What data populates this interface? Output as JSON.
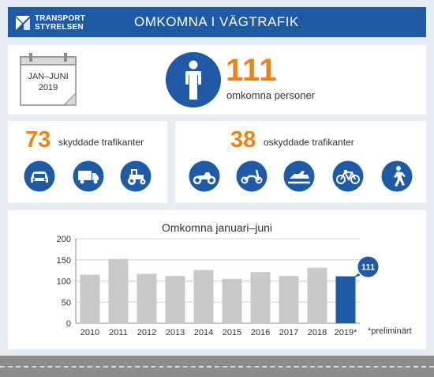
{
  "header": {
    "logo_line1": "TRANSPORT",
    "logo_line2": "STYRELSEN",
    "title": "OMKOMNA I VÄGTRAFIK"
  },
  "summary": {
    "period_line1": "JAN–JUNI",
    "period_line2": "2019",
    "total": "111",
    "total_label": "omkomna personer",
    "person_icon": "person-icon"
  },
  "protected": {
    "count": "73",
    "label": "skyddade trafikanter",
    "icons": [
      "car-icon",
      "truck-icon",
      "tractor-icon"
    ]
  },
  "unprotected": {
    "count": "38",
    "label": "oskyddade trafikanter",
    "icons": [
      "motorcycle-icon",
      "moped-icon",
      "snowmobile-icon",
      "bicycle-icon",
      "pedestrian-icon"
    ]
  },
  "colors": {
    "brand_blue": "#1f5aa6",
    "accent_orange": "#e8841a",
    "bar_gray": "#c9c9c9",
    "highlight_blue": "#1f5aa6",
    "background": "#e6ecf3"
  },
  "chart_data": {
    "type": "bar",
    "title": "Omkomna januari–juni",
    "categories": [
      "2010",
      "2011",
      "2012",
      "2013",
      "2014",
      "2015",
      "2016",
      "2017",
      "2018",
      "2019*"
    ],
    "values": [
      115,
      152,
      117,
      112,
      126,
      105,
      121,
      112,
      131,
      111
    ],
    "highlight_index": 9,
    "highlight_label": "111",
    "yticks": [
      0,
      50,
      100,
      150,
      200
    ],
    "ylim": [
      0,
      200
    ],
    "grid": true,
    "footnote": "*preliminärt"
  }
}
